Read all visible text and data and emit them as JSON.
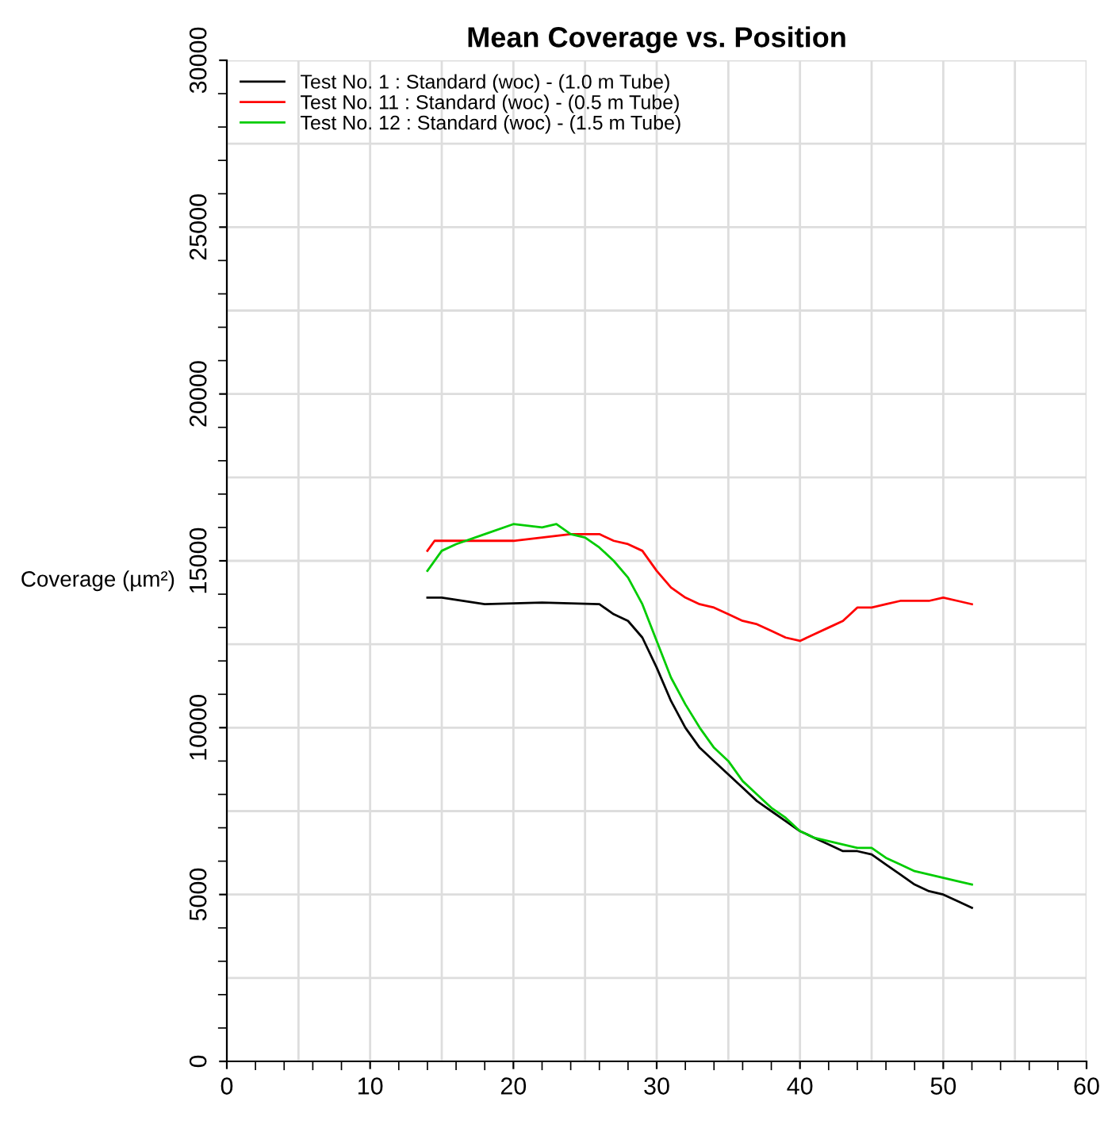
{
  "chart_data": {
    "type": "line",
    "title": "Mean Coverage vs. Position",
    "ylabel": "Coverage (µm²)",
    "xlim": [
      0,
      60
    ],
    "xticks": [
      0,
      10,
      20,
      30,
      40,
      50,
      60
    ],
    "ylim": [
      0,
      30000
    ],
    "yticks": [
      0,
      5000,
      10000,
      15000,
      20000,
      25000,
      30000
    ],
    "grid": true,
    "legend": "top left",
    "line_style": "solid",
    "marker": "none",
    "series": [
      {
        "name": "Test No. 1 : Standard (woc) - (1.0 m Tube)",
        "color": "#000000",
        "x": [
          14,
          15,
          18,
          22,
          26,
          27,
          28,
          29,
          30,
          31,
          32,
          33,
          34,
          35,
          36,
          37,
          38,
          39,
          40,
          41,
          42,
          43,
          44,
          45,
          46,
          47,
          48,
          49,
          50,
          51,
          52
        ],
        "values": [
          13900,
          13900,
          13700,
          13750,
          13700,
          13400,
          13200,
          12700,
          11800,
          10800,
          10000,
          9400,
          9000,
          8600,
          8200,
          7800,
          7500,
          7200,
          6900,
          6700,
          6500,
          6300,
          6300,
          6200,
          5900,
          5600,
          5300,
          5100,
          5000,
          4800,
          4600
        ]
      },
      {
        "name": "Test No. 11 : Standard (woc) - (0.5 m Tube)",
        "color": "#ff0000",
        "x": [
          14,
          14.5,
          16,
          18,
          20,
          22,
          24,
          26,
          27,
          28,
          29,
          30,
          31,
          32,
          33,
          34,
          35,
          36,
          37,
          38,
          39,
          40,
          41,
          42,
          43,
          44,
          45,
          46,
          47,
          48,
          49,
          50,
          51,
          52
        ],
        "values": [
          15300,
          15600,
          15600,
          15600,
          15600,
          15700,
          15800,
          15800,
          15600,
          15500,
          15300,
          14700,
          14200,
          13900,
          13700,
          13600,
          13400,
          13200,
          13100,
          12900,
          12700,
          12600,
          12800,
          13000,
          13200,
          13600,
          13600,
          13700,
          13800,
          13800,
          13800,
          13900,
          13800,
          13700
        ]
      },
      {
        "name": "Test No. 12 : Standard (woc) - (1.5 m Tube)",
        "color": "#00cc00",
        "x": [
          14,
          15,
          16,
          18,
          20,
          22,
          23,
          24,
          25,
          26,
          27,
          28,
          29,
          30,
          31,
          32,
          33,
          34,
          35,
          36,
          37,
          38,
          39,
          40,
          41,
          42,
          43,
          44,
          45,
          46,
          47,
          48,
          49,
          50,
          51,
          52
        ],
        "values": [
          14700,
          15300,
          15500,
          15800,
          16100,
          16000,
          16100,
          15800,
          15700,
          15400,
          15000,
          14500,
          13700,
          12600,
          11500,
          10700,
          10000,
          9400,
          9000,
          8400,
          8000,
          7600,
          7300,
          6900,
          6700,
          6600,
          6500,
          6400,
          6400,
          6100,
          5900,
          5700,
          5600,
          5500,
          5400,
          5300
        ]
      }
    ]
  }
}
